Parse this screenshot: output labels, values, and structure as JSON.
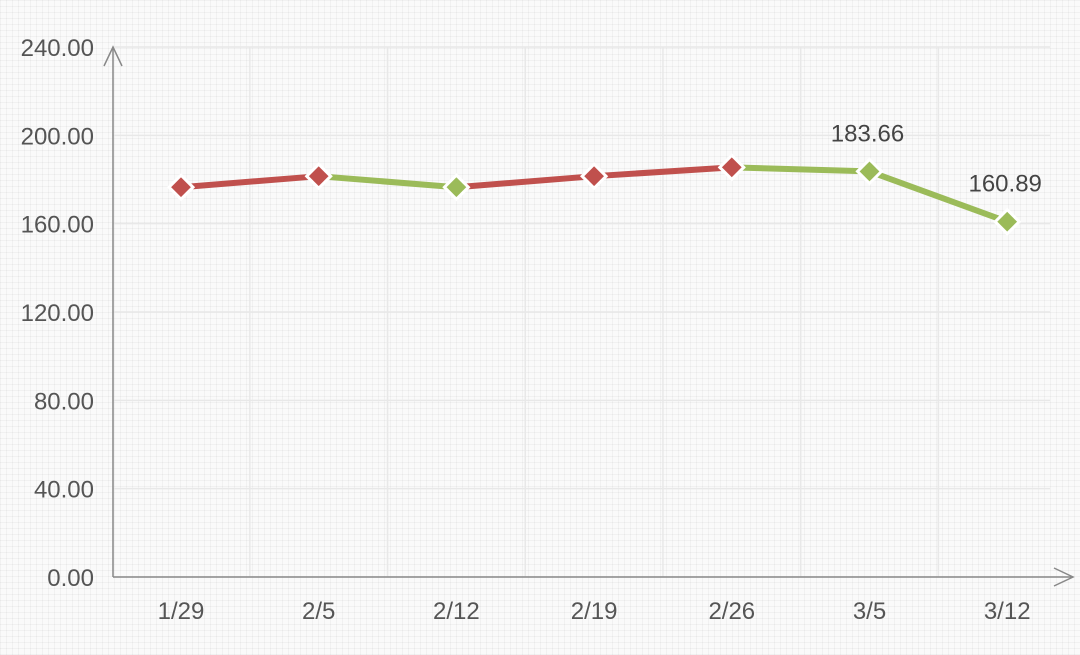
{
  "chart_data": {
    "type": "line",
    "categories": [
      "1/29",
      "2/5",
      "2/12",
      "2/19",
      "2/26",
      "3/5",
      "3/12"
    ],
    "values": [
      176.5,
      181.5,
      176.5,
      181.5,
      185.5,
      183.66,
      160.89
    ],
    "value_labels": [
      "",
      "",
      "",
      "",
      "",
      "183.66",
      "160.89"
    ],
    "ylim": [
      0,
      240
    ],
    "yticks": [
      "0.00",
      "40.00",
      "80.00",
      "120.00",
      "160.00",
      "200.00",
      "240.00"
    ],
    "grid": true,
    "colors": {
      "rise": "#c0504d",
      "fall": "#9bbb59",
      "axis": "#888888",
      "grid": "#e8e8e8"
    }
  }
}
